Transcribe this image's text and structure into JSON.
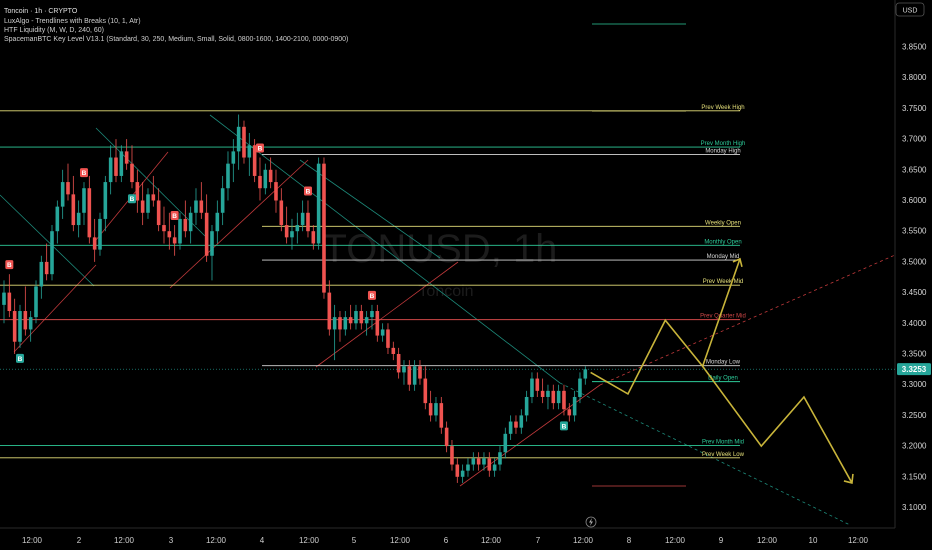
{
  "header": {
    "symbol_line": "Toncoin · 1h · CRYPTO",
    "indicators": [
      "LuxAlgo - Trendlines with Breaks (10, 1, Atr)",
      "HTF Liquidity (M, W, D, 240, 60)",
      "SpacemanBTC Key Level V13.1 (Standard, 30, 250, Medium, Small, Solid, 0800-1600, 1400-2100, 0000-0900)"
    ],
    "currency": "USD",
    "watermark": "TONUSD, 1h",
    "watermark_sub": "Toncoin"
  },
  "colors": {
    "bull": "#26a69a",
    "bear": "#ef5350",
    "yellow_level": "#e6e07a",
    "green_level": "#2ecc9a",
    "red_level": "#d04848",
    "white_level": "#d8d8d8",
    "projection": "#c8b43a",
    "price_tag": "#26a69a"
  },
  "chart_data": {
    "type": "candlestick",
    "symbol": "TONUSD",
    "timeframe": "1h",
    "price_axis_ticks": [
      3.85,
      3.8,
      3.75,
      3.7,
      3.65,
      3.6,
      3.55,
      3.5,
      3.45,
      3.4,
      3.35,
      3.3,
      3.25,
      3.2,
      3.15,
      3.1
    ],
    "time_axis_labels": [
      "12:00",
      "2",
      "12:00",
      "3",
      "12:00",
      "4",
      "12:00",
      "5",
      "12:00",
      "6",
      "12:00",
      "7",
      "12:00",
      "8",
      "12:00",
      "9",
      "12:00",
      "10",
      "12:00"
    ],
    "current_price": "3.3253",
    "candles": [
      {
        "o": 3.43,
        "h": 3.47,
        "l": 3.4,
        "c": 3.45
      },
      {
        "o": 3.45,
        "h": 3.48,
        "l": 3.41,
        "c": 3.42
      },
      {
        "o": 3.42,
        "h": 3.44,
        "l": 3.35,
        "c": 3.37
      },
      {
        "o": 3.37,
        "h": 3.43,
        "l": 3.36,
        "c": 3.42
      },
      {
        "o": 3.42,
        "h": 3.46,
        "l": 3.38,
        "c": 3.39
      },
      {
        "o": 3.39,
        "h": 3.42,
        "l": 3.37,
        "c": 3.41
      },
      {
        "o": 3.41,
        "h": 3.47,
        "l": 3.4,
        "c": 3.46
      },
      {
        "o": 3.46,
        "h": 3.51,
        "l": 3.44,
        "c": 3.5
      },
      {
        "o": 3.5,
        "h": 3.53,
        "l": 3.47,
        "c": 3.48
      },
      {
        "o": 3.48,
        "h": 3.56,
        "l": 3.47,
        "c": 3.55
      },
      {
        "o": 3.55,
        "h": 3.6,
        "l": 3.53,
        "c": 3.59
      },
      {
        "o": 3.59,
        "h": 3.65,
        "l": 3.57,
        "c": 3.63
      },
      {
        "o": 3.63,
        "h": 3.66,
        "l": 3.6,
        "c": 3.61
      },
      {
        "o": 3.61,
        "h": 3.64,
        "l": 3.55,
        "c": 3.56
      },
      {
        "o": 3.56,
        "h": 3.6,
        "l": 3.54,
        "c": 3.58
      },
      {
        "o": 3.58,
        "h": 3.63,
        "l": 3.56,
        "c": 3.62
      },
      {
        "o": 3.62,
        "h": 3.64,
        "l": 3.53,
        "c": 3.54
      },
      {
        "o": 3.54,
        "h": 3.57,
        "l": 3.5,
        "c": 3.52
      },
      {
        "o": 3.52,
        "h": 3.58,
        "l": 3.51,
        "c": 3.57
      },
      {
        "o": 3.57,
        "h": 3.64,
        "l": 3.55,
        "c": 3.63
      },
      {
        "o": 3.63,
        "h": 3.69,
        "l": 3.61,
        "c": 3.67
      },
      {
        "o": 3.67,
        "h": 3.7,
        "l": 3.63,
        "c": 3.64
      },
      {
        "o": 3.64,
        "h": 3.69,
        "l": 3.63,
        "c": 3.68
      },
      {
        "o": 3.68,
        "h": 3.7,
        "l": 3.65,
        "c": 3.66
      },
      {
        "o": 3.66,
        "h": 3.69,
        "l": 3.62,
        "c": 3.63
      },
      {
        "o": 3.63,
        "h": 3.65,
        "l": 3.58,
        "c": 3.6
      },
      {
        "o": 3.6,
        "h": 3.63,
        "l": 3.56,
        "c": 3.58
      },
      {
        "o": 3.58,
        "h": 3.62,
        "l": 3.57,
        "c": 3.61
      },
      {
        "o": 3.61,
        "h": 3.64,
        "l": 3.59,
        "c": 3.6
      },
      {
        "o": 3.6,
        "h": 3.62,
        "l": 3.55,
        "c": 3.56
      },
      {
        "o": 3.56,
        "h": 3.59,
        "l": 3.53,
        "c": 3.55
      },
      {
        "o": 3.55,
        "h": 3.58,
        "l": 3.52,
        "c": 3.54
      },
      {
        "o": 3.54,
        "h": 3.56,
        "l": 3.51,
        "c": 3.53
      },
      {
        "o": 3.53,
        "h": 3.58,
        "l": 3.52,
        "c": 3.57
      },
      {
        "o": 3.57,
        "h": 3.6,
        "l": 3.54,
        "c": 3.55
      },
      {
        "o": 3.55,
        "h": 3.59,
        "l": 3.53,
        "c": 3.58
      },
      {
        "o": 3.58,
        "h": 3.62,
        "l": 3.56,
        "c": 3.6
      },
      {
        "o": 3.6,
        "h": 3.63,
        "l": 3.57,
        "c": 3.58
      },
      {
        "o": 3.58,
        "h": 3.61,
        "l": 3.5,
        "c": 3.51
      },
      {
        "o": 3.51,
        "h": 3.56,
        "l": 3.47,
        "c": 3.55
      },
      {
        "o": 3.55,
        "h": 3.6,
        "l": 3.53,
        "c": 3.58
      },
      {
        "o": 3.58,
        "h": 3.64,
        "l": 3.56,
        "c": 3.62
      },
      {
        "o": 3.62,
        "h": 3.68,
        "l": 3.6,
        "c": 3.66
      },
      {
        "o": 3.66,
        "h": 3.7,
        "l": 3.63,
        "c": 3.68
      },
      {
        "o": 3.68,
        "h": 3.74,
        "l": 3.65,
        "c": 3.72
      },
      {
        "o": 3.72,
        "h": 3.73,
        "l": 3.66,
        "c": 3.67
      },
      {
        "o": 3.67,
        "h": 3.71,
        "l": 3.64,
        "c": 3.69
      },
      {
        "o": 3.69,
        "h": 3.7,
        "l": 3.63,
        "c": 3.64
      },
      {
        "o": 3.64,
        "h": 3.67,
        "l": 3.6,
        "c": 3.62
      },
      {
        "o": 3.62,
        "h": 3.66,
        "l": 3.61,
        "c": 3.65
      },
      {
        "o": 3.65,
        "h": 3.67,
        "l": 3.62,
        "c": 3.63
      },
      {
        "o": 3.63,
        "h": 3.65,
        "l": 3.58,
        "c": 3.6
      },
      {
        "o": 3.6,
        "h": 3.62,
        "l": 3.55,
        "c": 3.56
      },
      {
        "o": 3.56,
        "h": 3.59,
        "l": 3.53,
        "c": 3.54
      },
      {
        "o": 3.54,
        "h": 3.57,
        "l": 3.52,
        "c": 3.55
      },
      {
        "o": 3.55,
        "h": 3.58,
        "l": 3.53,
        "c": 3.56
      },
      {
        "o": 3.56,
        "h": 3.6,
        "l": 3.55,
        "c": 3.58
      },
      {
        "o": 3.58,
        "h": 3.6,
        "l": 3.54,
        "c": 3.55
      },
      {
        "o": 3.55,
        "h": 3.56,
        "l": 3.52,
        "c": 3.53
      },
      {
        "o": 3.53,
        "h": 3.67,
        "l": 3.52,
        "c": 3.66
      },
      {
        "o": 3.66,
        "h": 3.67,
        "l": 3.44,
        "c": 3.45
      },
      {
        "o": 3.45,
        "h": 3.47,
        "l": 3.38,
        "c": 3.39
      },
      {
        "o": 3.39,
        "h": 3.43,
        "l": 3.34,
        "c": 3.41
      },
      {
        "o": 3.41,
        "h": 3.42,
        "l": 3.37,
        "c": 3.39
      },
      {
        "o": 3.39,
        "h": 3.42,
        "l": 3.38,
        "c": 3.41
      },
      {
        "o": 3.41,
        "h": 3.43,
        "l": 3.39,
        "c": 3.4
      },
      {
        "o": 3.4,
        "h": 3.43,
        "l": 3.39,
        "c": 3.42
      },
      {
        "o": 3.42,
        "h": 3.43,
        "l": 3.39,
        "c": 3.4
      },
      {
        "o": 3.4,
        "h": 3.42,
        "l": 3.38,
        "c": 3.41
      },
      {
        "o": 3.41,
        "h": 3.43,
        "l": 3.39,
        "c": 3.42
      },
      {
        "o": 3.42,
        "h": 3.43,
        "l": 3.37,
        "c": 3.38
      },
      {
        "o": 3.38,
        "h": 3.4,
        "l": 3.37,
        "c": 3.39
      },
      {
        "o": 3.39,
        "h": 3.4,
        "l": 3.35,
        "c": 3.36
      },
      {
        "o": 3.36,
        "h": 3.37,
        "l": 3.34,
        "c": 3.35
      },
      {
        "o": 3.35,
        "h": 3.36,
        "l": 3.31,
        "c": 3.32
      },
      {
        "o": 3.32,
        "h": 3.34,
        "l": 3.3,
        "c": 3.33
      },
      {
        "o": 3.33,
        "h": 3.34,
        "l": 3.29,
        "c": 3.3
      },
      {
        "o": 3.3,
        "h": 3.34,
        "l": 3.29,
        "c": 3.33
      },
      {
        "o": 3.33,
        "h": 3.34,
        "l": 3.3,
        "c": 3.31
      },
      {
        "o": 3.31,
        "h": 3.33,
        "l": 3.26,
        "c": 3.27
      },
      {
        "o": 3.27,
        "h": 3.29,
        "l": 3.24,
        "c": 3.25
      },
      {
        "o": 3.25,
        "h": 3.28,
        "l": 3.24,
        "c": 3.27
      },
      {
        "o": 3.27,
        "h": 3.28,
        "l": 3.22,
        "c": 3.23
      },
      {
        "o": 3.23,
        "h": 3.24,
        "l": 3.19,
        "c": 3.2
      },
      {
        "o": 3.2,
        "h": 3.21,
        "l": 3.16,
        "c": 3.17
      },
      {
        "o": 3.17,
        "h": 3.18,
        "l": 3.14,
        "c": 3.15
      },
      {
        "o": 3.15,
        "h": 3.17,
        "l": 3.14,
        "c": 3.16
      },
      {
        "o": 3.16,
        "h": 3.18,
        "l": 3.15,
        "c": 3.17
      },
      {
        "o": 3.17,
        "h": 3.19,
        "l": 3.16,
        "c": 3.18
      },
      {
        "o": 3.18,
        "h": 3.19,
        "l": 3.16,
        "c": 3.17
      },
      {
        "o": 3.17,
        "h": 3.19,
        "l": 3.16,
        "c": 3.18
      },
      {
        "o": 3.18,
        "h": 3.19,
        "l": 3.15,
        "c": 3.16
      },
      {
        "o": 3.16,
        "h": 3.18,
        "l": 3.15,
        "c": 3.17
      },
      {
        "o": 3.17,
        "h": 3.2,
        "l": 3.16,
        "c": 3.19
      },
      {
        "o": 3.19,
        "h": 3.23,
        "l": 3.18,
        "c": 3.22
      },
      {
        "o": 3.22,
        "h": 3.25,
        "l": 3.21,
        "c": 3.24
      },
      {
        "o": 3.24,
        "h": 3.25,
        "l": 3.22,
        "c": 3.23
      },
      {
        "o": 3.23,
        "h": 3.26,
        "l": 3.22,
        "c": 3.25
      },
      {
        "o": 3.25,
        "h": 3.29,
        "l": 3.24,
        "c": 3.28
      },
      {
        "o": 3.28,
        "h": 3.32,
        "l": 3.27,
        "c": 3.31
      },
      {
        "o": 3.31,
        "h": 3.32,
        "l": 3.28,
        "c": 3.29
      },
      {
        "o": 3.29,
        "h": 3.31,
        "l": 3.27,
        "c": 3.28
      },
      {
        "o": 3.28,
        "h": 3.3,
        "l": 3.26,
        "c": 3.29
      },
      {
        "o": 3.29,
        "h": 3.3,
        "l": 3.26,
        "c": 3.27
      },
      {
        "o": 3.27,
        "h": 3.3,
        "l": 3.26,
        "c": 3.29
      },
      {
        "o": 3.29,
        "h": 3.3,
        "l": 3.25,
        "c": 3.26
      },
      {
        "o": 3.26,
        "h": 3.27,
        "l": 3.24,
        "c": 3.25
      },
      {
        "o": 3.25,
        "h": 3.29,
        "l": 3.24,
        "c": 3.28
      },
      {
        "o": 3.28,
        "h": 3.32,
        "l": 3.27,
        "c": 3.31
      },
      {
        "o": 3.31,
        "h": 3.33,
        "l": 3.3,
        "c": 3.325
      }
    ],
    "levels": [
      {
        "label": "Prev Week High",
        "price": 3.746,
        "color": "yellow_level",
        "x_start": "left"
      },
      {
        "label": "Prev Month High",
        "price": 3.687,
        "color": "green_level",
        "x_start": "left"
      },
      {
        "label": "Monday High",
        "price": 3.675,
        "color": "white_level",
        "x_start": "mid"
      },
      {
        "label": "Weekly Open",
        "price": 3.558,
        "color": "yellow_level",
        "x_start": "mid"
      },
      {
        "label": "Monthly Open",
        "price": 3.527,
        "color": "green_level",
        "x_start": "left"
      },
      {
        "label": "Monday Mid",
        "price": 3.503,
        "color": "white_level",
        "x_start": "mid"
      },
      {
        "label": "Prev Week Mid",
        "price": 3.462,
        "color": "yellow_level",
        "x_start": "left"
      },
      {
        "label": "Prev Quarter Mid",
        "price": 3.406,
        "color": "red_level",
        "x_start": "left"
      },
      {
        "label": "Monday Low",
        "price": 3.331,
        "color": "white_level",
        "x_start": "mid"
      },
      {
        "label": "Daily Open",
        "price": 3.305,
        "color": "green_level",
        "x_start": "right"
      },
      {
        "label": "Prev Month Mid",
        "price": 3.201,
        "color": "green_level",
        "x_start": "left"
      },
      {
        "label": "Prev Week Low",
        "price": 3.181,
        "color": "yellow_level",
        "x_start": "left"
      }
    ],
    "signals": [
      {
        "type": "bear",
        "label": "B",
        "candle": 1
      },
      {
        "type": "bull",
        "label": "B",
        "candle": 3
      },
      {
        "type": "bear",
        "label": "B",
        "candle": 15
      },
      {
        "type": "bull",
        "label": "B",
        "candle": 24
      },
      {
        "type": "bear",
        "label": "B",
        "candle": 32
      },
      {
        "type": "bear",
        "label": "B",
        "candle": 48
      },
      {
        "type": "bear",
        "label": "B",
        "candle": 57
      },
      {
        "type": "bear",
        "label": "B",
        "candle": 69
      },
      {
        "type": "bull",
        "label": "B",
        "candle": 105
      }
    ],
    "projection_path": [
      {
        "t": 110,
        "p": 3.32
      },
      {
        "t": 117,
        "p": 3.285
      },
      {
        "t": 124,
        "p": 3.405
      },
      {
        "t": 131,
        "p": 3.33
      },
      {
        "t": 138,
        "p": 3.505
      }
    ],
    "projection_path2": [
      {
        "t": 131,
        "p": 3.33
      },
      {
        "t": 142,
        "p": 3.2
      },
      {
        "t": 150,
        "p": 3.28
      },
      {
        "t": 159,
        "p": 3.14
      }
    ],
    "ylim": [
      3.08,
      3.88
    ]
  }
}
